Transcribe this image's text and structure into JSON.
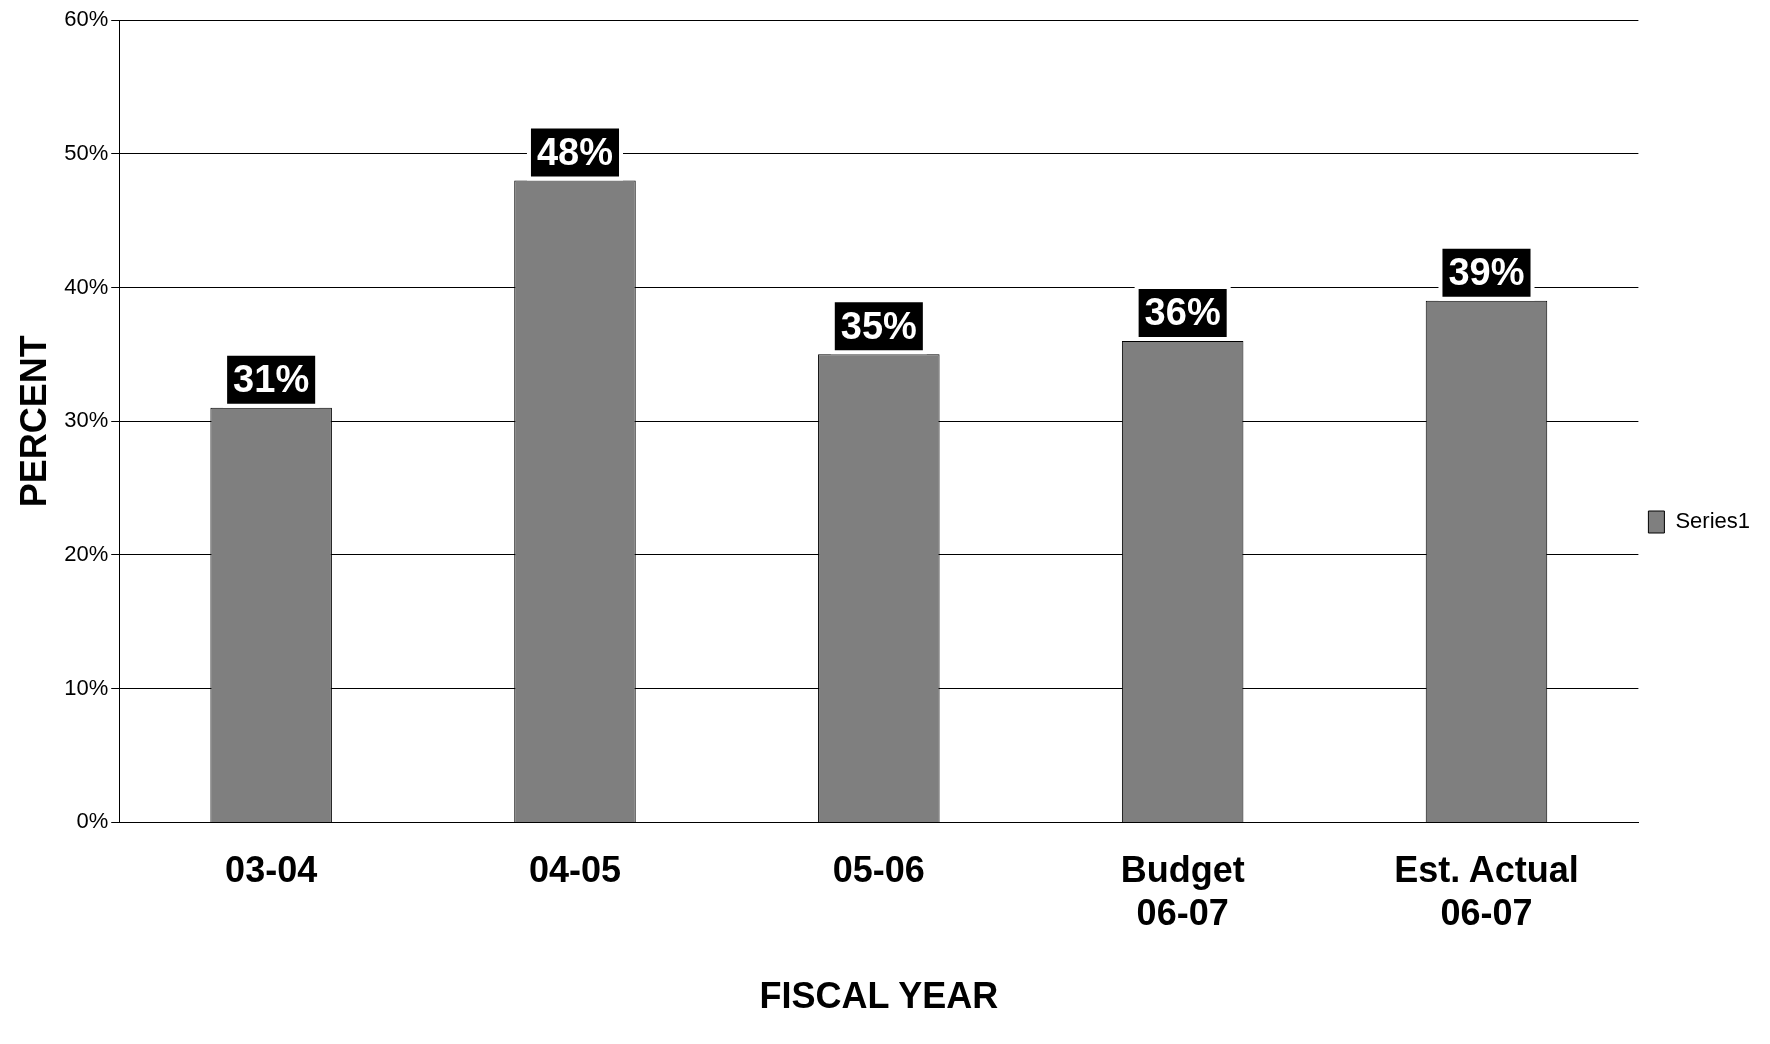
{
  "chart_data": {
    "type": "bar",
    "xlabel": "FISCAL YEAR",
    "ylabel": "PERCENT",
    "categories": [
      "03-04",
      "04-05",
      "05-06",
      "Budget\n06-07",
      "Est. Actual\n06-07"
    ],
    "series": [
      {
        "name": "Series1",
        "color": "#7f7f7f",
        "values": [
          31,
          48,
          35,
          36,
          39
        ],
        "value_labels": [
          "31%",
          "48%",
          "35%",
          "36%",
          "39%"
        ]
      }
    ],
    "ylim": [
      0,
      60
    ],
    "yticks": [
      {
        "value": 0,
        "label": "0%"
      },
      {
        "value": 10,
        "label": "10%"
      },
      {
        "value": 20,
        "label": "20%"
      },
      {
        "value": 30,
        "label": "30%"
      },
      {
        "value": 40,
        "label": "40%"
      },
      {
        "value": 50,
        "label": "50%"
      },
      {
        "value": 60,
        "label": "60%"
      }
    ],
    "grid": "y",
    "legend": "right"
  }
}
